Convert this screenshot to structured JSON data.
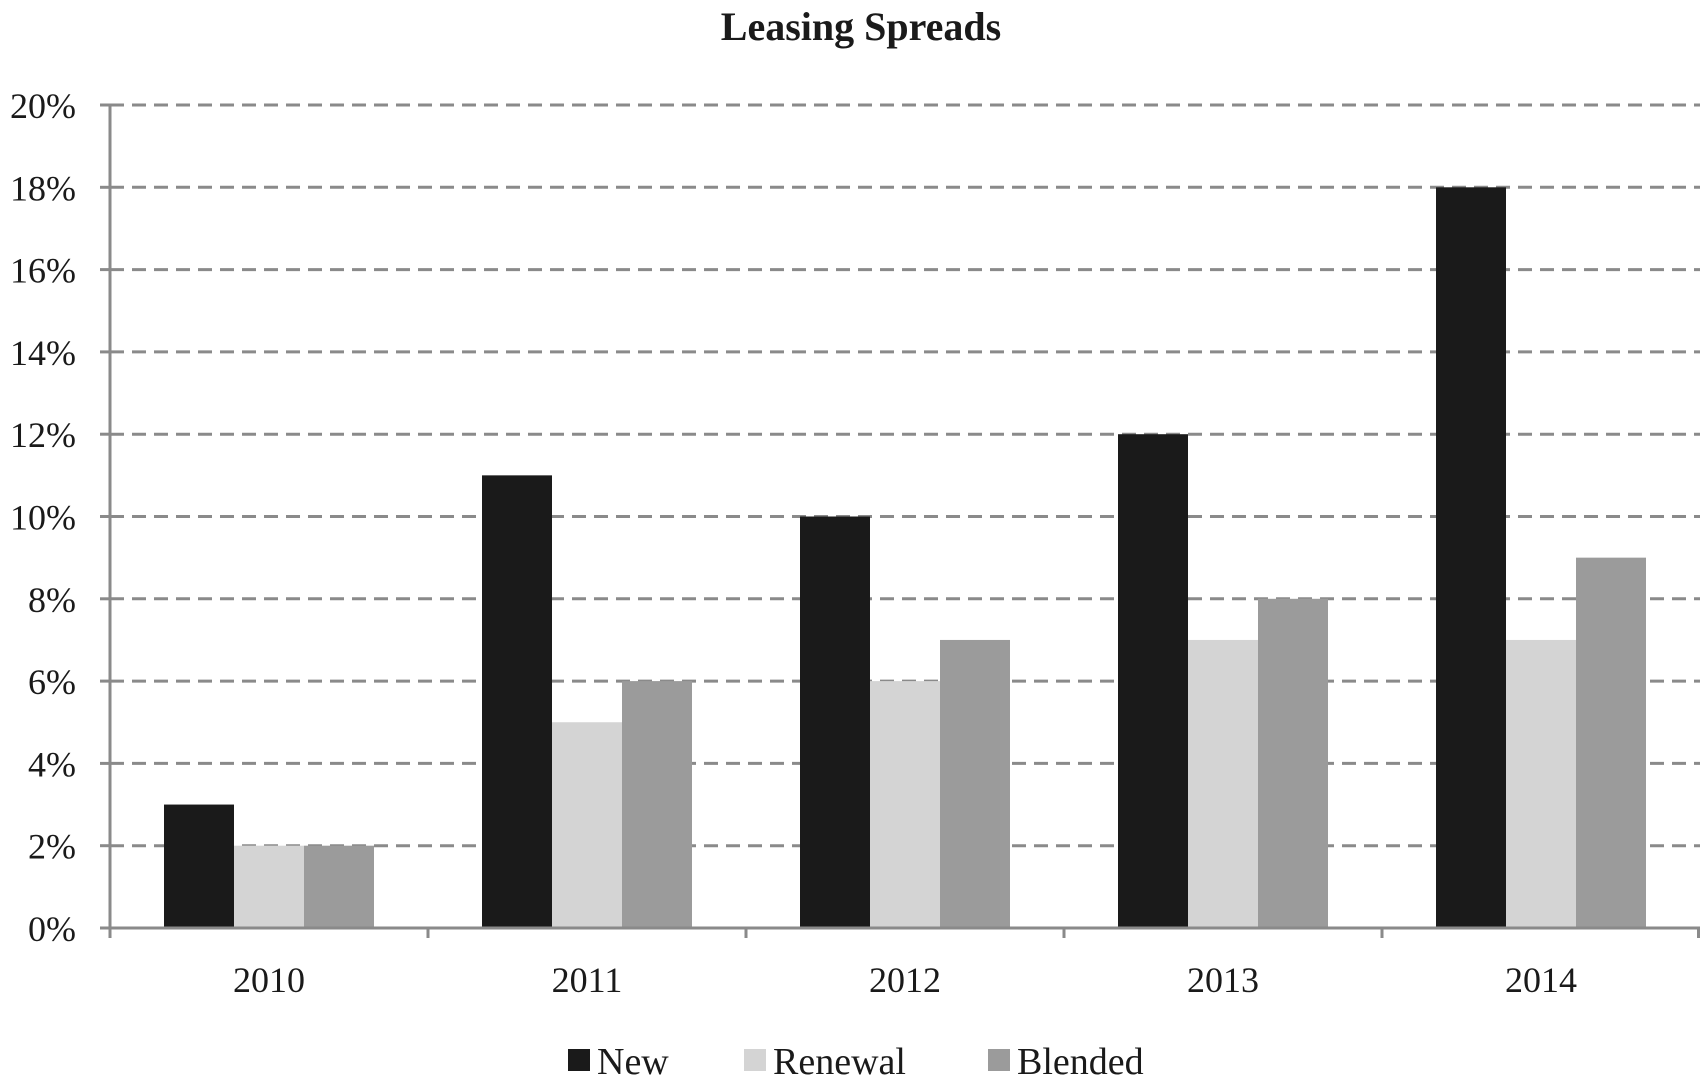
{
  "chart_data": {
    "type": "bar",
    "title": "Leasing Spreads",
    "xlabel": "",
    "ylabel": "",
    "categories": [
      "2010",
      "2011",
      "2012",
      "2013",
      "2014"
    ],
    "series": [
      {
        "name": "New",
        "color": "#1a1a1a",
        "values": [
          3,
          11,
          10,
          12,
          18
        ]
      },
      {
        "name": "Renewal",
        "color": "#d4d4d4",
        "values": [
          2,
          5,
          6,
          7,
          7
        ]
      },
      {
        "name": "Blended",
        "color": "#9b9b9b",
        "values": [
          2,
          6,
          7,
          8,
          9
        ]
      }
    ],
    "ylim": [
      0,
      20
    ],
    "y_ticks": [
      0,
      2,
      4,
      6,
      8,
      10,
      12,
      14,
      16,
      18,
      20
    ],
    "y_tick_labels": [
      "0%",
      "2%",
      "4%",
      "6%",
      "8%",
      "10%",
      "12%",
      "14%",
      "16%",
      "18%",
      "20%"
    ],
    "value_suffix": "%",
    "grid": true,
    "grid_style": "dashed",
    "legend_position": "bottom"
  }
}
